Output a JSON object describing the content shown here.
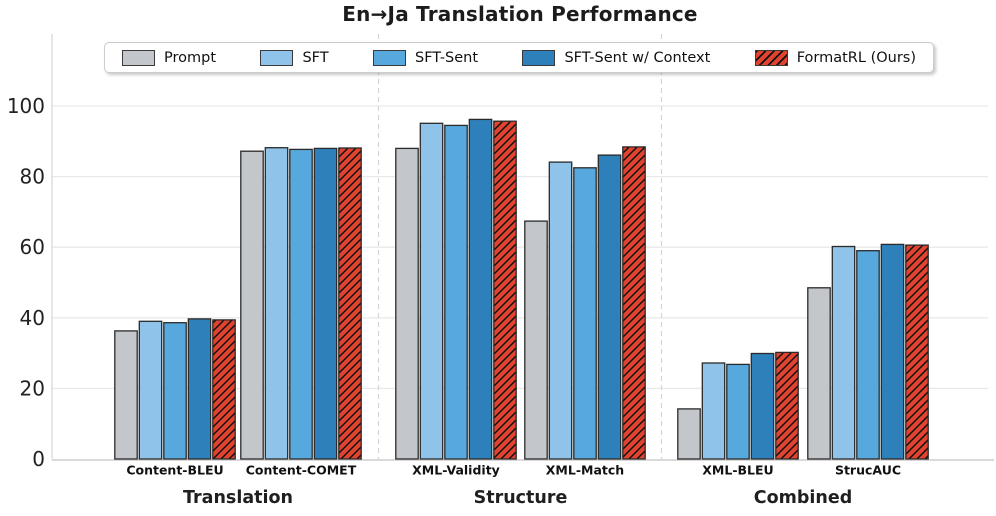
{
  "chart_data": {
    "type": "bar",
    "title": "En→Ja Translation Performance",
    "categories": [
      "Content-BLEU",
      "Content-COMET",
      "XML-Validity",
      "XML-Match",
      "XML-BLEU",
      "StrucAUC"
    ],
    "sections": [
      {
        "label": "Translation",
        "category_indexes": [
          0,
          1
        ]
      },
      {
        "label": "Structure",
        "category_indexes": [
          2,
          3
        ]
      },
      {
        "label": "Combined",
        "category_indexes": [
          4,
          5
        ]
      }
    ],
    "series": [
      {
        "name": "Prompt",
        "color": "#c3c7cb",
        "hatch": false,
        "values": [
          36.3,
          87.2,
          88.0,
          67.4,
          14.2,
          48.5
        ]
      },
      {
        "name": "SFT",
        "color": "#8fc3e9",
        "hatch": false,
        "values": [
          39.0,
          88.2,
          95.1,
          84.1,
          27.2,
          60.2
        ]
      },
      {
        "name": "SFT-Sent",
        "color": "#57a9dd",
        "hatch": false,
        "values": [
          38.6,
          87.7,
          94.5,
          82.5,
          26.8,
          59.0
        ]
      },
      {
        "name": "SFT-Sent w/ Context",
        "color": "#2e80ba",
        "hatch": false,
        "values": [
          39.7,
          88.0,
          96.2,
          86.1,
          29.9,
          60.8
        ]
      },
      {
        "name": "FormatRL (Ours)",
        "color": "#e2432f",
        "hatch": true,
        "values": [
          39.4,
          88.1,
          95.7,
          88.4,
          30.2,
          60.6
        ]
      }
    ],
    "yticks": [
      0,
      20,
      40,
      60,
      80,
      100
    ],
    "ylim": [
      0,
      120
    ],
    "grid": true,
    "legend_position": "top-inside",
    "bar_edge_color": "#2a2a2a",
    "hatch_color": "#111111",
    "grid_color": "#e9e9e9",
    "separator_color": "#d6d6d6",
    "axis_color": "#d9d9d9",
    "tick_label_color": "#222222",
    "category_label_color": "#111111",
    "section_label_color": "#1f1f1f"
  }
}
